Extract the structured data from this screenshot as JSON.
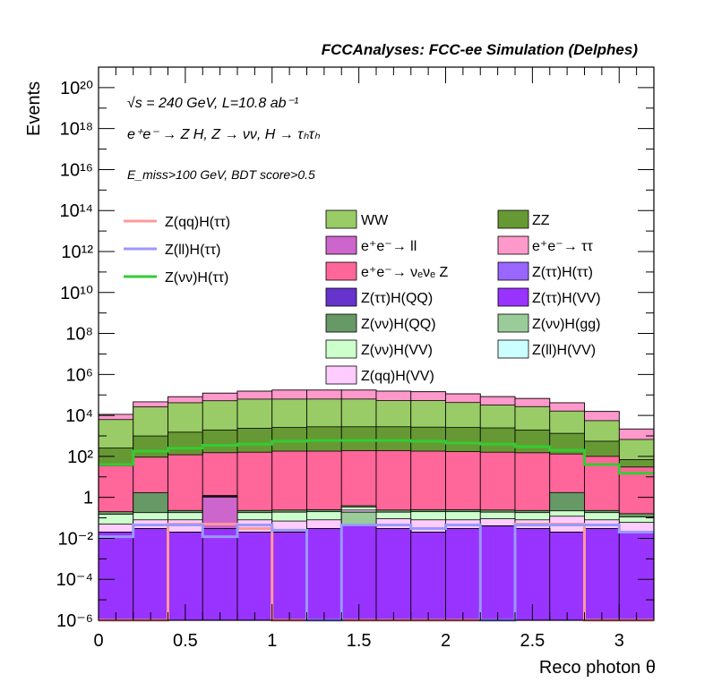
{
  "chart_data": {
    "type": "area",
    "title": "FCCAnalyses: FCC-ee Simulation (Delphes)",
    "xlabel": "Reco photon θ",
    "ylabel": "Events",
    "yscale": "log",
    "xlim": [
      0,
      3.2
    ],
    "ylim": [
      1e-06,
      1e+21
    ],
    "annotations": {
      "energy": "√s = 240 GeV, L=10.8 ab⁻¹",
      "process": "e⁺e⁻ → Z H, Z → νν, H → τₕτₕ",
      "selection": "E_miss>100 GeV, BDT score>0.5"
    },
    "x_ticks": [
      "0",
      "0.5",
      "1",
      "1.5",
      "2",
      "2.5",
      "3"
    ],
    "y_ticks": [
      "10⁻⁶",
      "10⁻⁴",
      "10⁻²",
      "1",
      "10²",
      "10⁴",
      "10⁶",
      "10⁸",
      "10¹⁰",
      "10¹²",
      "10¹⁴",
      "10¹⁶",
      "10¹⁸",
      "10²⁰"
    ],
    "bin_edges": [
      0,
      0.2,
      0.4,
      0.6,
      0.8,
      1.0,
      1.2,
      1.4,
      1.6,
      1.8,
      2.0,
      2.2,
      2.4,
      2.6,
      2.8,
      3.0,
      3.2
    ],
    "stack": [
      {
        "name": "Z(ττ)H(VV)",
        "color": "#9933ff",
        "values": [
          0.02,
          0.03,
          0.02,
          0.03,
          0.02,
          0.02,
          0.03,
          0.04,
          0.03,
          0.02,
          0.03,
          0.04,
          0.03,
          0.02,
          0.03,
          0.02
        ]
      },
      {
        "name": "Z(ττ)H(QQ)",
        "color": "#6633cc",
        "values": [
          0,
          0,
          0.0001,
          0,
          0,
          0,
          0,
          0,
          0,
          0,
          0,
          0,
          0,
          0,
          0,
          0
        ]
      },
      {
        "name": "Z(ll)H(VV)",
        "color": "#ccffff",
        "values": [
          0,
          0,
          0,
          0,
          0,
          0,
          0,
          0,
          0,
          5e-05,
          0,
          0,
          0,
          0,
          0,
          0
        ]
      },
      {
        "name": "Z(νν)H(gg)",
        "color": "#99cc99",
        "values": [
          0,
          0,
          0,
          0,
          0,
          0,
          0,
          0.15,
          0,
          0,
          0,
          0,
          0,
          0,
          0,
          0
        ]
      },
      {
        "name": "e⁺e⁻→ ll",
        "color": "#cc66cc",
        "values": [
          0,
          0,
          0,
          1.0,
          0,
          0,
          0,
          0,
          0,
          0,
          0,
          0,
          0,
          0,
          0,
          0
        ]
      },
      {
        "name": "Z(qq)H(VV)",
        "color": "#ffccff",
        "values": [
          0.03,
          0.05,
          0.06,
          0.05,
          0.06,
          0.05,
          0.05,
          0.05,
          0.06,
          0.06,
          0.05,
          0.05,
          0.05,
          0.1,
          0.05,
          0.04
        ]
      },
      {
        "name": "Z(νν)H(VV)",
        "color": "#ccffcc",
        "values": [
          0.1,
          0.1,
          0.1,
          0.1,
          0.1,
          0.12,
          0.12,
          0.1,
          0.1,
          0.12,
          0.12,
          0.1,
          0.1,
          0.1,
          0.1,
          0.05
        ]
      },
      {
        "name": "Z(νν)H(QQ)",
        "color": "#669966",
        "values": [
          0.05,
          1.5,
          0.05,
          0.05,
          0.05,
          0.05,
          0.05,
          0.05,
          0.05,
          0.05,
          0.05,
          0.05,
          0.05,
          1.5,
          0.05,
          0.05
        ]
      },
      {
        "name": "e⁺e⁻→ νₑνₑ Z",
        "color": "#ff6699",
        "values": [
          35,
          90,
          120,
          150,
          160,
          180,
          180,
          190,
          190,
          180,
          170,
          160,
          150,
          130,
          100,
          30
        ]
      },
      {
        "name": "ZZ",
        "color": "#669933",
        "values": [
          220,
          900,
          1400,
          1800,
          2200,
          2400,
          2600,
          2600,
          2600,
          2500,
          2400,
          2300,
          1800,
          1200,
          450,
          40
        ]
      },
      {
        "name": "WW",
        "color": "#99cc66",
        "values": [
          6000,
          25000,
          40000,
          50000,
          60000,
          60000,
          60000,
          60000,
          50000,
          50000,
          40000,
          30000,
          25000,
          15000,
          5000,
          600
        ]
      },
      {
        "name": "e⁺e⁻→ ττ",
        "color": "#ff99cc",
        "values": [
          5000,
          20000,
          40000,
          70000,
          90000,
          110000,
          110000,
          110000,
          100000,
          90000,
          70000,
          50000,
          40000,
          25000,
          10000,
          1500
        ]
      },
      {
        "name": "Z(ττ)H(ττ)",
        "color": "#9966ff",
        "values": [
          0,
          0,
          0,
          0,
          0,
          0,
          0,
          0,
          0,
          0,
          0,
          0,
          0,
          0,
          0,
          0
        ]
      }
    ],
    "lines": [
      {
        "name": "Z(qq)H(ττ)",
        "color": "#ff9999",
        "values": [
          1e-06,
          1e-06,
          0.05,
          0.05,
          0.03,
          1e-06,
          1e-06,
          1e-06,
          1e-06,
          1e-06,
          1e-06,
          1e-06,
          0.05,
          0.05,
          1e-06,
          1e-06
        ]
      },
      {
        "name": "Z(ll)H(ττ)",
        "color": "#9999ff",
        "values": [
          0.012,
          0.045,
          0.045,
          0.012,
          0.045,
          0.025,
          1e-06,
          0.045,
          0.045,
          0.03,
          0.045,
          1e-06,
          0.045,
          0.045,
          0.045,
          0.02
        ]
      },
      {
        "name": "Z(νν)H(ττ)",
        "color": "#33cc33",
        "values": [
          40,
          180,
          250,
          350,
          400,
          550,
          600,
          600,
          600,
          550,
          450,
          400,
          300,
          200,
          40,
          15
        ]
      }
    ],
    "legend_col1": [
      "Z(qq)H(ττ)",
      "Z(ll)H(ττ)",
      "Z(νν)H(ττ)"
    ],
    "legend_col2": [
      "WW",
      "e⁺e⁻→ ll",
      "e⁺e⁻→ νₑνₑ Z",
      "Z(ττ)H(QQ)",
      "Z(νν)H(QQ)",
      "Z(νν)H(VV)",
      "Z(qq)H(VV)"
    ],
    "legend_col3": [
      "ZZ",
      "e⁺e⁻→ ττ",
      "Z(ττ)H(ττ)",
      "Z(ττ)H(VV)",
      "Z(νν)H(gg)",
      "Z(ll)H(VV)"
    ]
  }
}
